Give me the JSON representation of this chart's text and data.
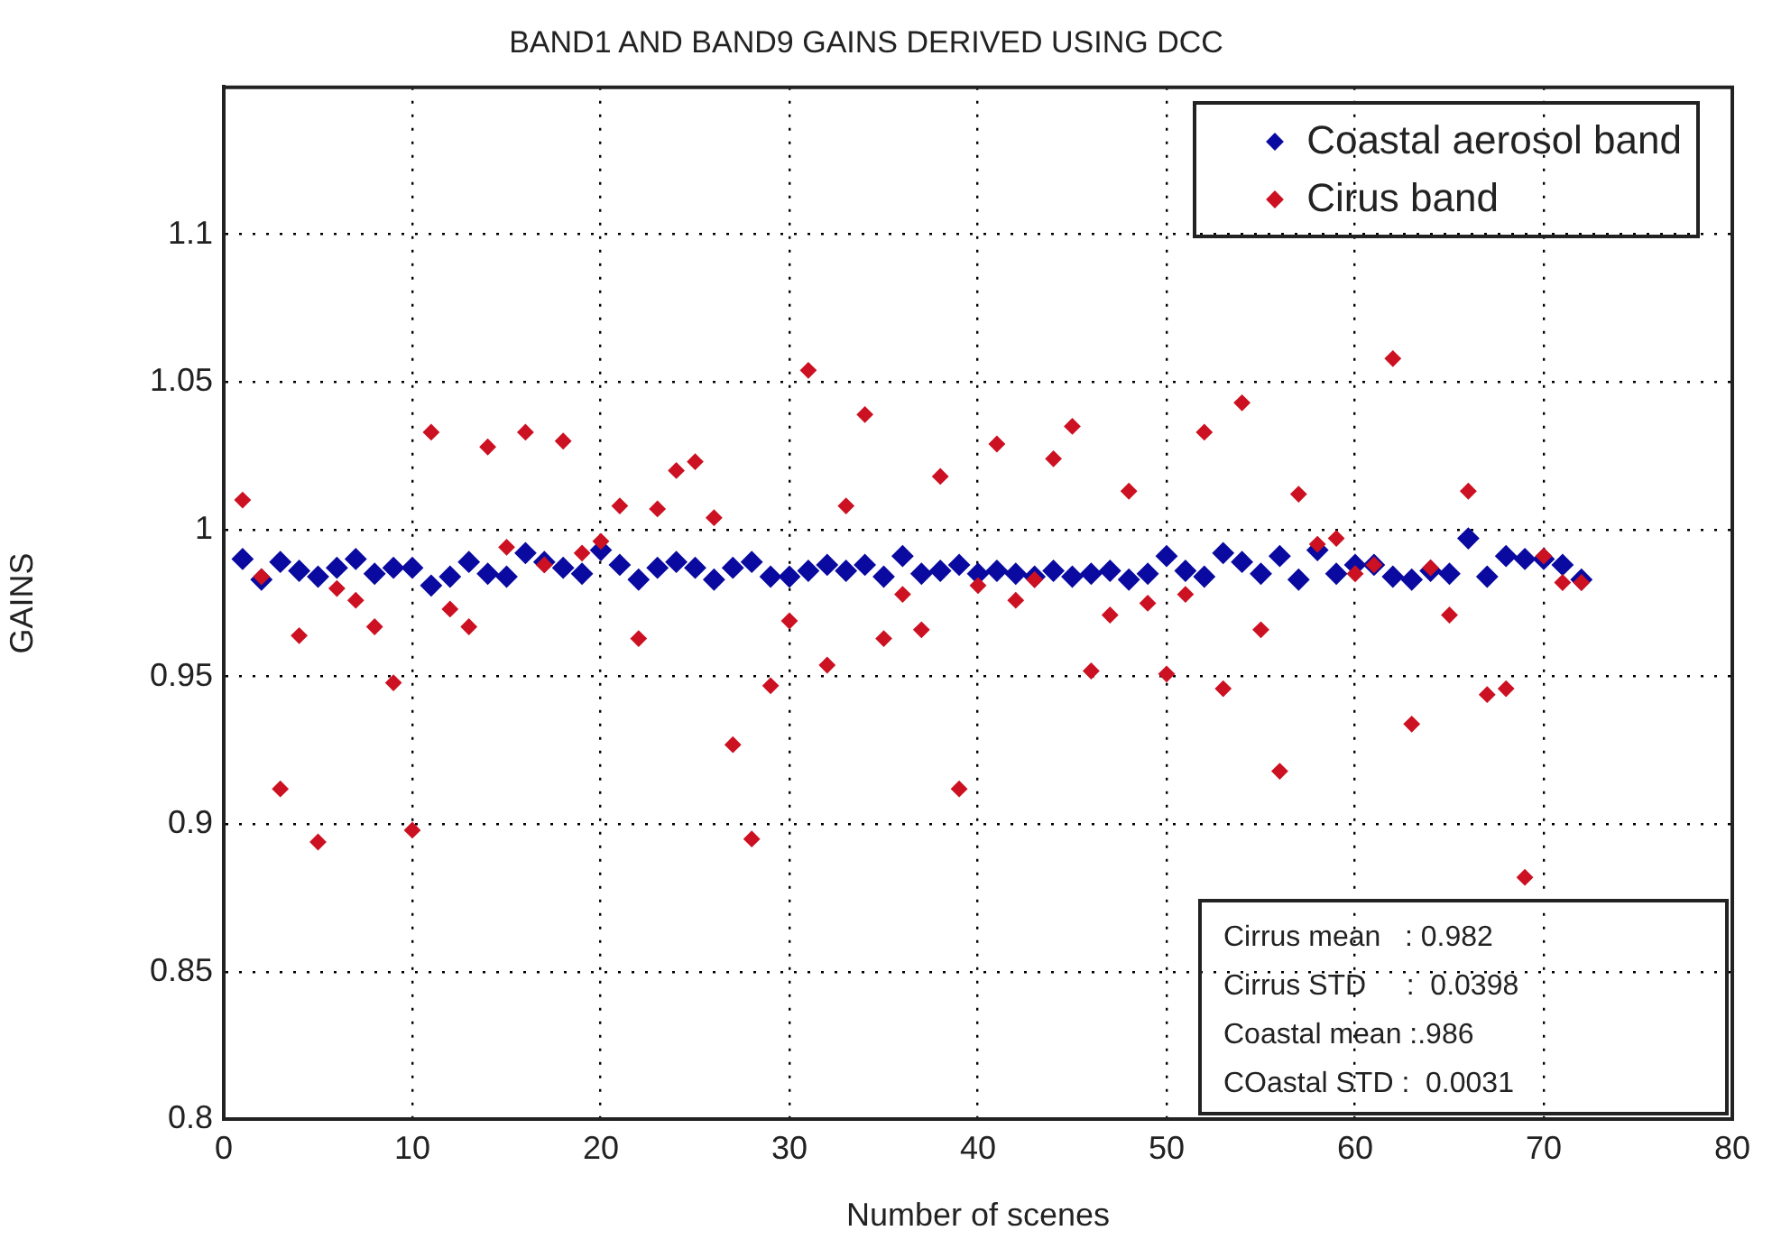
{
  "chart_data": {
    "type": "scatter",
    "title": "BAND1 AND BAND9 GAINS DERIVED USING DCC",
    "xlabel": "Number of scenes",
    "ylabel": "GAINS",
    "x": [
      1,
      2,
      3,
      4,
      5,
      6,
      7,
      8,
      9,
      10,
      11,
      12,
      13,
      14,
      15,
      16,
      17,
      18,
      19,
      20,
      21,
      22,
      23,
      24,
      25,
      26,
      27,
      28,
      29,
      30,
      31,
      32,
      33,
      34,
      35,
      36,
      37,
      38,
      39,
      40,
      41,
      42,
      43,
      44,
      45,
      46,
      47,
      48,
      49,
      50,
      51,
      52,
      53,
      54,
      55,
      56,
      57,
      58,
      59,
      60,
      61,
      62,
      63,
      64,
      65,
      66,
      67,
      68,
      69,
      70,
      71,
      72
    ],
    "series": [
      {
        "name": "Coastal aerosol band",
        "color": "#0a0aa0",
        "values": [
          0.99,
          0.983,
          0.989,
          0.986,
          0.984,
          0.987,
          0.99,
          0.985,
          0.987,
          0.987,
          0.981,
          0.984,
          0.989,
          0.985,
          0.984,
          0.992,
          0.989,
          0.987,
          0.985,
          0.993,
          0.988,
          0.983,
          0.987,
          0.989,
          0.987,
          0.983,
          0.987,
          0.989,
          0.984,
          0.984,
          0.986,
          0.988,
          0.986,
          0.988,
          0.984,
          0.991,
          0.985,
          0.986,
          0.988,
          0.985,
          0.986,
          0.985,
          0.984,
          0.986,
          0.984,
          0.985,
          0.986,
          0.983,
          0.985,
          0.991,
          0.986,
          0.984,
          0.992,
          0.989,
          0.985,
          0.991,
          0.983,
          0.993,
          0.985,
          0.988,
          0.988,
          0.984,
          0.983,
          0.986,
          0.985,
          0.997,
          0.984,
          0.991,
          0.99,
          0.99,
          0.988,
          0.983
        ]
      },
      {
        "name": "Cirus band",
        "color": "#cc1122",
        "values": [
          1.01,
          0.984,
          0.912,
          0.964,
          0.894,
          0.98,
          0.976,
          0.967,
          0.948,
          0.898,
          1.033,
          0.973,
          0.967,
          1.028,
          0.994,
          1.033,
          0.988,
          1.03,
          0.992,
          0.996,
          1.008,
          0.963,
          1.007,
          1.02,
          1.023,
          1.004,
          0.927,
          0.895,
          0.947,
          0.969,
          1.054,
          0.954,
          1.008,
          1.039,
          0.963,
          0.978,
          0.966,
          1.018,
          0.912,
          0.981,
          1.029,
          0.976,
          0.983,
          1.024,
          1.035,
          0.952,
          0.971,
          1.013,
          0.975,
          0.951,
          0.978,
          1.033,
          0.946,
          1.043,
          0.966,
          0.918,
          1.012,
          0.995,
          0.997,
          0.985,
          0.988,
          1.058,
          0.934,
          0.987,
          0.971,
          1.013,
          0.944,
          0.946,
          0.882,
          0.991,
          0.982,
          0.982
        ]
      }
    ],
    "xlim": [
      0,
      80
    ],
    "xticks": [
      0,
      10,
      20,
      30,
      40,
      50,
      60,
      70,
      80
    ],
    "ylim": [
      0.8,
      1.15
    ],
    "yticks": [
      0.8,
      0.85,
      0.9,
      0.95,
      1,
      1.05,
      1.1
    ],
    "grid": true,
    "legend": "top right",
    "marker": "diamond",
    "annotations": [
      "Cirrus mean   : 0.982",
      "Cirrus STD     :  0.0398",
      "Coastal mean :.986",
      "COastal STD :  0.0031"
    ]
  }
}
